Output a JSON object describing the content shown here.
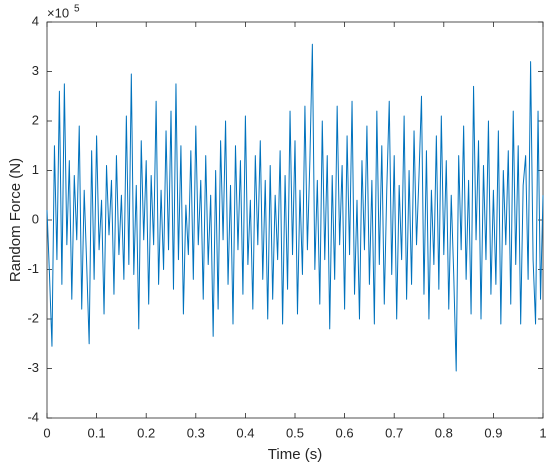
{
  "chart_data": {
    "type": "line",
    "x_label": "Time (s)",
    "y_label": "Random Force (N)",
    "y_multiplier": "×10",
    "y_multiplier_exponent": "5",
    "xlim": [
      0,
      1
    ],
    "ylim": [
      -4,
      4
    ],
    "xticks": [
      0,
      0.1,
      0.2,
      0.3,
      0.4,
      0.5,
      0.6,
      0.7,
      0.8,
      0.9,
      1
    ],
    "yticks": [
      -4,
      -3,
      -2,
      -1,
      0,
      1,
      2,
      3,
      4
    ],
    "grid": false,
    "x": [
      0,
      0.005,
      0.01,
      0.015,
      0.02,
      0.025,
      0.03,
      0.035,
      0.04,
      0.045,
      0.05,
      0.055,
      0.06,
      0.065,
      0.07,
      0.075,
      0.08,
      0.085,
      0.09,
      0.095,
      0.1,
      0.105,
      0.11,
      0.115,
      0.12,
      0.125,
      0.13,
      0.135,
      0.14,
      0.145,
      0.15,
      0.155,
      0.16,
      0.165,
      0.17,
      0.175,
      0.18,
      0.185,
      0.19,
      0.195,
      0.2,
      0.205,
      0.21,
      0.215,
      0.22,
      0.225,
      0.23,
      0.235,
      0.24,
      0.245,
      0.25,
      0.255,
      0.26,
      0.265,
      0.27,
      0.275,
      0.28,
      0.285,
      0.29,
      0.295,
      0.3,
      0.305,
      0.31,
      0.315,
      0.32,
      0.325,
      0.33,
      0.335,
      0.34,
      0.345,
      0.35,
      0.355,
      0.36,
      0.365,
      0.37,
      0.375,
      0.38,
      0.385,
      0.39,
      0.395,
      0.4,
      0.405,
      0.41,
      0.415,
      0.42,
      0.425,
      0.43,
      0.435,
      0.44,
      0.445,
      0.45,
      0.455,
      0.46,
      0.465,
      0.47,
      0.475,
      0.48,
      0.485,
      0.49,
      0.495,
      0.5,
      0.505,
      0.51,
      0.515,
      0.52,
      0.525,
      0.53,
      0.535,
      0.54,
      0.545,
      0.55,
      0.555,
      0.56,
      0.565,
      0.57,
      0.575,
      0.58,
      0.585,
      0.59,
      0.595,
      0.6,
      0.605,
      0.61,
      0.615,
      0.62,
      0.625,
      0.63,
      0.635,
      0.64,
      0.645,
      0.65,
      0.655,
      0.66,
      0.665,
      0.67,
      0.675,
      0.68,
      0.685,
      0.69,
      0.695,
      0.7,
      0.705,
      0.71,
      0.715,
      0.72,
      0.725,
      0.73,
      0.735,
      0.74,
      0.745,
      0.75,
      0.755,
      0.76,
      0.765,
      0.77,
      0.775,
      0.78,
      0.785,
      0.79,
      0.795,
      0.8,
      0.805,
      0.81,
      0.815,
      0.82,
      0.825,
      0.83,
      0.835,
      0.84,
      0.845,
      0.85,
      0.855,
      0.86,
      0.865,
      0.87,
      0.875,
      0.88,
      0.885,
      0.89,
      0.895,
      0.9,
      0.905,
      0.91,
      0.915,
      0.92,
      0.925,
      0.93,
      0.935,
      0.94,
      0.945,
      0.95,
      0.955,
      0.96,
      0.965,
      0.97,
      0.975,
      0.98,
      0.985,
      0.99,
      0.995,
      1
    ],
    "series": [
      {
        "color": "#0072bd",
        "values": [
          0.2,
          -1.1,
          -2.55,
          1.5,
          -0.8,
          2.6,
          -1.3,
          2.75,
          -0.5,
          1.2,
          -1.6,
          0.9,
          -0.4,
          1.9,
          -1.8,
          0.6,
          -0.9,
          -2.5,
          1.4,
          -1.2,
          1.7,
          -0.6,
          0.4,
          -1.9,
          1.1,
          -0.3,
          0.8,
          -1.5,
          1.3,
          -0.7,
          0.5,
          -1.2,
          2.1,
          -0.9,
          2.95,
          -1.1,
          0.7,
          -2.2,
          1.6,
          -0.4,
          1.2,
          -1.7,
          0.9,
          -0.5,
          2.4,
          -1.3,
          0.6,
          -1.0,
          1.8,
          -0.6,
          2.2,
          -1.4,
          2.75,
          -0.8,
          1.5,
          -1.9,
          0.3,
          -0.7,
          1.4,
          -1.2,
          1.9,
          -0.5,
          0.8,
          -1.6,
          1.3,
          -0.9,
          0.5,
          -2.35,
          1.0,
          -1.8,
          1.6,
          -0.4,
          2.0,
          -1.3,
          0.7,
          -2.1,
          1.5,
          -0.6,
          1.2,
          -1.5,
          2.1,
          -0.9,
          0.4,
          -1.8,
          1.3,
          -0.5,
          1.6,
          -1.2,
          0.8,
          -2.0,
          1.1,
          -1.6,
          0.5,
          -0.8,
          1.4,
          -2.1,
          0.9,
          -1.4,
          2.2,
          -0.7,
          1.6,
          -1.9,
          0.6,
          -1.1,
          2.3,
          -0.6,
          1.2,
          3.55,
          -1.0,
          0.8,
          -1.7,
          2.0,
          -0.8,
          1.3,
          -2.2,
          0.9,
          -1.2,
          2.3,
          -0.5,
          1.1,
          -1.8,
          1.7,
          -0.7,
          2.4,
          -1.5,
          0.4,
          -2.0,
          1.2,
          -0.6,
          1.9,
          -1.3,
          0.8,
          -2.1,
          2.2,
          -0.9,
          1.5,
          -1.7,
          0.6,
          2.4,
          -1.1,
          1.3,
          -2.0,
          0.7,
          -0.8,
          2.1,
          -1.6,
          1.0,
          -1.3,
          1.8,
          -0.5,
          0.9,
          2.5,
          -1.5,
          1.4,
          -2.0,
          0.6,
          -0.9,
          1.7,
          -1.4,
          2.1,
          -0.7,
          1.2,
          -1.8,
          0.5,
          -1.1,
          -3.05,
          1.3,
          -0.6,
          1.9,
          -1.2,
          0.8,
          -1.9,
          2.7,
          -0.4,
          1.6,
          -2.0,
          1.1,
          -0.8,
          2.0,
          -1.5,
          0.6,
          -1.3,
          1.8,
          -2.1,
          1.0,
          -0.5,
          1.4,
          -1.7,
          2.2,
          -0.9,
          1.5,
          -2.1,
          0.7,
          1.3,
          -1.2,
          3.2,
          -0.8,
          -2.1,
          2.2,
          -1.6,
          0.5
        ]
      }
    ]
  }
}
